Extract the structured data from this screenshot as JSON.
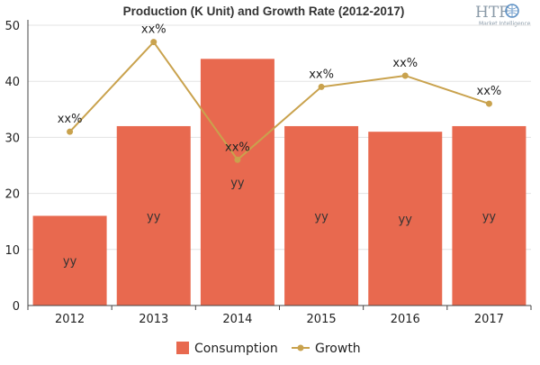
{
  "logo": {
    "text": "HTF",
    "subtext": "Market Intelligence",
    "color": "#8a9aa8"
  },
  "chart_data": {
    "type": "bar",
    "title": "Production (K Unit) and Growth Rate (2012-2017)",
    "categories": [
      "2012",
      "2013",
      "2014",
      "2015",
      "2016",
      "2017"
    ],
    "ylim": [
      0,
      50
    ],
    "yticks": [
      "0",
      "10",
      "20",
      "30",
      "40",
      "50"
    ],
    "grid": true,
    "legend_position": "bottom",
    "series": [
      {
        "name": "Consumption",
        "kind": "bar",
        "color": "#e8694f",
        "values": [
          16,
          32,
          44,
          32,
          31,
          32
        ],
        "labels": [
          "yy",
          "yy",
          "yy",
          "yy",
          "yy",
          "yy"
        ]
      },
      {
        "name": "Growth",
        "kind": "line",
        "color": "#c9a24d",
        "values": [
          31,
          47,
          26,
          39,
          41,
          36
        ],
        "labels": [
          "xx%",
          "xx%",
          "xx%",
          "xx%",
          "xx%",
          "xx%"
        ]
      }
    ]
  }
}
